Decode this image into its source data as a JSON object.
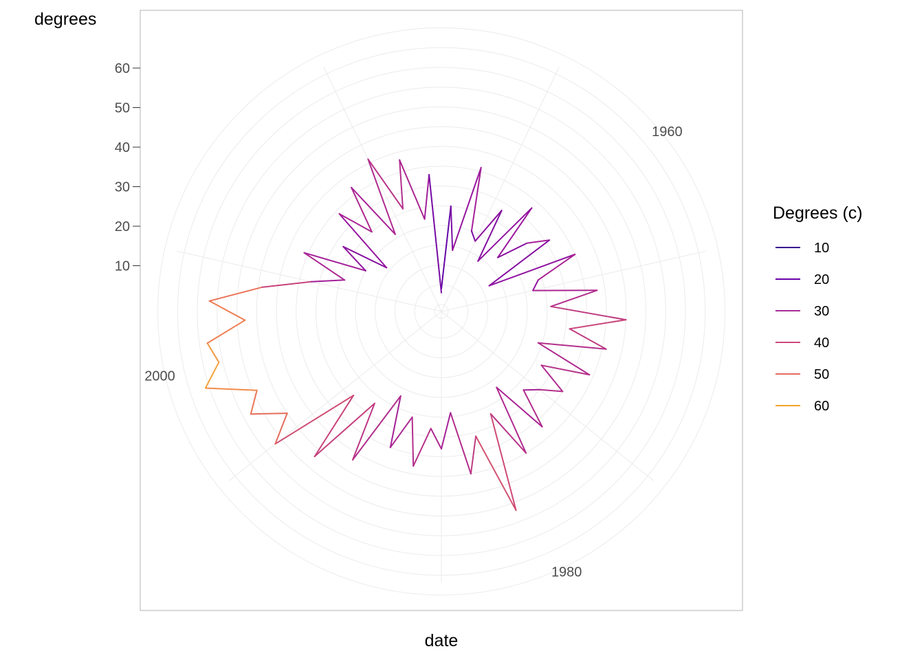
{
  "chart_data": {
    "type": "line",
    "coord": "polar",
    "xlabel": "date",
    "ylabel": "degrees",
    "x_ticks": [
      "1960",
      "1980",
      "2000"
    ],
    "y_ticks": [
      10,
      20,
      30,
      40,
      50,
      60
    ],
    "grid": true,
    "legend": {
      "title": "Degrees (c)",
      "placement": "right",
      "entries": [
        {
          "label": "10",
          "color": "#3a0a8f"
        },
        {
          "label": "20",
          "color": "#6a00a8"
        },
        {
          "label": "30",
          "color": "#a42d94"
        },
        {
          "label": "40",
          "color": "#cc4778"
        },
        {
          "label": "50",
          "color": "#e56b5d"
        },
        {
          "label": "60",
          "color": "#f6a32a"
        }
      ]
    },
    "series": [
      {
        "x_range": [
          "1950",
          "2020"
        ],
        "points": [
          [
            1950,
            4
          ],
          [
            1951,
            25
          ],
          [
            1952,
            14
          ],
          [
            1953,
            36
          ],
          [
            1954,
            20
          ],
          [
            1955,
            18
          ],
          [
            1956,
            28
          ],
          [
            1957,
            14
          ],
          [
            1958,
            33
          ],
          [
            1959,
            18
          ],
          [
            1960,
            26
          ],
          [
            1961,
            31
          ],
          [
            1962,
            12
          ],
          [
            1963,
            35
          ],
          [
            1964,
            24
          ],
          [
            1965,
            22
          ],
          [
            1966,
            38
          ],
          [
            1967,
            26
          ],
          [
            1968,
            45
          ],
          [
            1969,
            31
          ],
          [
            1970,
            41
          ],
          [
            1971,
            24
          ],
          [
            1972,
            39
          ],
          [
            1973,
            27
          ],
          [
            1974,
            35
          ],
          [
            1975,
            30
          ],
          [
            1976,
            27
          ],
          [
            1977,
            37
          ],
          [
            1978,
            22
          ],
          [
            1979,
            40
          ],
          [
            1980,
            27
          ],
          [
            1981,
            52
          ],
          [
            1982,
            31
          ],
          [
            1983,
            40
          ],
          [
            1984,
            24
          ],
          [
            1985,
            33
          ],
          [
            1986,
            28
          ],
          [
            1987,
            38
          ],
          [
            1988,
            26
          ],
          [
            1989,
            35
          ],
          [
            1990,
            22
          ],
          [
            1991,
            42
          ],
          [
            1992,
            27
          ],
          [
            1993,
            47
          ],
          [
            1994,
            29
          ],
          [
            1995,
            52
          ],
          [
            1996,
            45
          ],
          [
            1997,
            53
          ],
          [
            1998,
            49
          ],
          [
            1999,
            61
          ],
          [
            2000,
            56
          ],
          [
            2001,
            58
          ],
          [
            2002,
            48
          ],
          [
            2003,
            57
          ],
          [
            2004,
            44
          ],
          [
            2005,
            32
          ],
          [
            2006,
            24
          ],
          [
            2007,
            36
          ],
          [
            2008,
            20
          ],
          [
            2009,
            28
          ],
          [
            2010,
            16
          ],
          [
            2011,
            34
          ],
          [
            2012,
            25
          ],
          [
            2013,
            37
          ],
          [
            2014,
            21
          ],
          [
            2015,
            41
          ],
          [
            2016,
            26
          ],
          [
            2017,
            38
          ],
          [
            2018,
            22
          ],
          [
            2019,
            33
          ],
          [
            2020,
            3
          ]
        ]
      }
    ]
  }
}
